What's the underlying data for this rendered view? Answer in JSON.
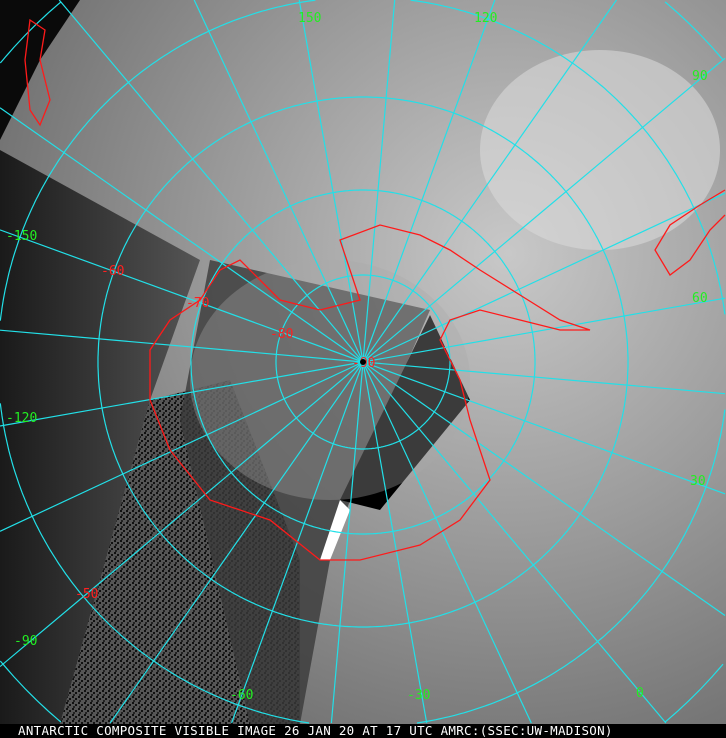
{
  "caption": "ANTARCTIC COMPOSITE VISIBLE IMAGE 26 JAN 20 AT 17 UTC AMRC:(SSEC:UW-MADISON)",
  "colors": {
    "grid": "#22e0e8",
    "coastline": "#ff1a1a",
    "longitude_labels": "#22ee22",
    "latitude_labels": "#ff2020",
    "caption_text": "#ffffff"
  },
  "longitude_labels": [
    {
      "lon": 150,
      "text": "150"
    },
    {
      "lon": 120,
      "text": "120"
    },
    {
      "lon": 90,
      "text": "90"
    },
    {
      "lon": 60,
      "text": "60"
    },
    {
      "lon": 30,
      "text": "30"
    },
    {
      "lon": 0,
      "text": "0"
    },
    {
      "lon": -30,
      "text": "-30"
    },
    {
      "lon": -60,
      "text": "-60"
    },
    {
      "lon": -90,
      "text": "-90"
    },
    {
      "lon": -120,
      "text": "-120"
    },
    {
      "lon": -150,
      "text": "-150"
    }
  ],
  "latitude_labels": [
    {
      "lat": -90,
      "text": "-90"
    },
    {
      "lat": -80,
      "text": "-80"
    },
    {
      "lat": -70,
      "text": "-70"
    },
    {
      "lat": -60,
      "text": "-60"
    },
    {
      "lat": -50,
      "text": "-50"
    }
  ]
}
